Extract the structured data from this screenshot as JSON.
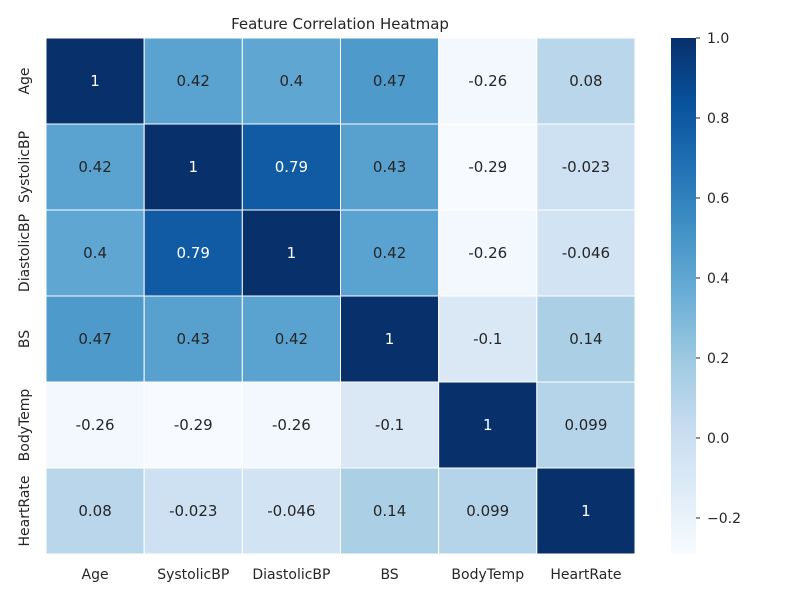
{
  "chart_data": {
    "type": "heatmap",
    "title": "Feature Correlation Heatmap",
    "xlabel": "",
    "ylabel": "",
    "x_categories": [
      "Age",
      "SystolicBP",
      "DiastolicBP",
      "BS",
      "BodyTemp",
      "HeartRate"
    ],
    "y_categories": [
      "Age",
      "SystolicBP",
      "DiastolicBP",
      "BS",
      "BodyTemp",
      "HeartRate"
    ],
    "values": [
      [
        1,
        0.42,
        0.4,
        0.47,
        -0.26,
        0.08
      ],
      [
        0.42,
        1,
        0.79,
        0.43,
        -0.29,
        -0.023
      ],
      [
        0.4,
        0.79,
        1,
        0.42,
        -0.26,
        -0.046
      ],
      [
        0.47,
        0.43,
        0.42,
        1,
        -0.1,
        0.14
      ],
      [
        -0.26,
        -0.29,
        -0.26,
        -0.1,
        1,
        0.099
      ],
      [
        0.08,
        -0.023,
        -0.046,
        0.14,
        0.099,
        1
      ]
    ],
    "labels": [
      [
        "1",
        "0.42",
        "0.4",
        "0.47",
        "-0.26",
        "0.08"
      ],
      [
        "0.42",
        "1",
        "0.79",
        "0.43",
        "-0.29",
        "-0.023"
      ],
      [
        "0.4",
        "0.79",
        "1",
        "0.42",
        "-0.26",
        "-0.046"
      ],
      [
        "0.47",
        "0.43",
        "0.42",
        "1",
        "-0.1",
        "0.14"
      ],
      [
        "-0.26",
        "-0.29",
        "-0.26",
        "-0.1",
        "1",
        "0.099"
      ],
      [
        "0.08",
        "-0.023",
        "-0.046",
        "0.14",
        "0.099",
        "1"
      ]
    ],
    "colorbar": {
      "range": [
        -0.29,
        1.0
      ],
      "ticks": [
        -0.2,
        0.0,
        0.2,
        0.4,
        0.6,
        0.8,
        1.0
      ],
      "tick_labels": [
        "−0.2",
        "0.0",
        "0.2",
        "0.4",
        "0.6",
        "0.8",
        "1.0"
      ]
    },
    "colormap": "Blues",
    "colors": {
      "low": "#f7fbff",
      "high": "#08306b",
      "text_dark": "#262626",
      "text_light": "#ffffff",
      "cell_border": "#ffffff"
    }
  }
}
